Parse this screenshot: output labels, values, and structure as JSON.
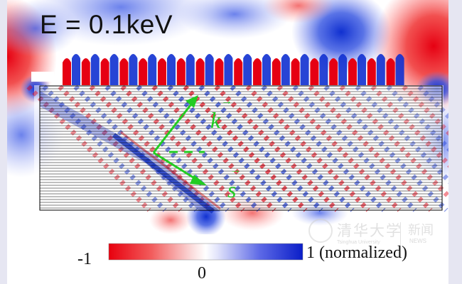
{
  "figure": {
    "energy_label": "E = 0.1keV",
    "vector_k": "k",
    "vector_s": "s",
    "colorbar": {
      "min_label": "-1",
      "mid_label": "0",
      "max_label": "1 (normalized)",
      "colors": [
        "#e8000e",
        "#ffffff",
        "#0a1ec8"
      ]
    },
    "watermark": {
      "chinese": "清华大学",
      "english": "Tsinghua University",
      "news": "新闻",
      "news_en": "NEWS"
    },
    "colors": {
      "red": "#e60012",
      "blue": "#1030d0",
      "arrow_green": "#22cc22"
    }
  }
}
